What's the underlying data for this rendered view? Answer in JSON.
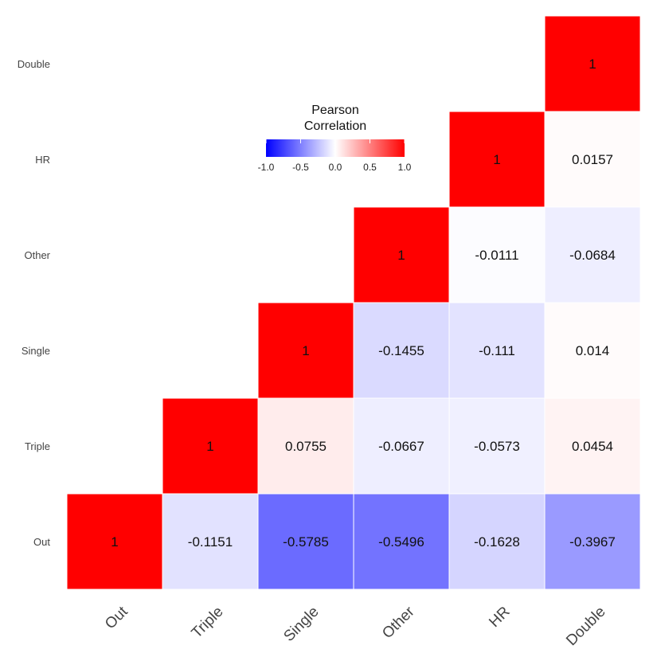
{
  "chart_data": {
    "type": "heatmap",
    "title": "",
    "variables": [
      "Out",
      "Triple",
      "Single",
      "Other",
      "HR",
      "Double"
    ],
    "matrix": [
      [
        1,
        -0.1151,
        -0.5785,
        -0.5496,
        -0.1628,
        -0.3967
      ],
      [
        null,
        1,
        0.0755,
        -0.0667,
        -0.0573,
        0.0454
      ],
      [
        null,
        null,
        1,
        -0.1455,
        -0.111,
        0.014
      ],
      [
        null,
        null,
        null,
        1,
        -0.0111,
        -0.0684
      ],
      [
        null,
        null,
        null,
        null,
        1,
        0.0157
      ],
      [
        null,
        null,
        null,
        null,
        null,
        1
      ]
    ],
    "legend": {
      "title_line1": "Pearson",
      "title_line2": "Correlation",
      "range": [
        -1,
        1
      ],
      "ticks": [
        "-1.0",
        "-0.5",
        "0.0",
        "0.5",
        "1.0"
      ],
      "low_color": "#0000ff",
      "mid_color": "#ffffff",
      "high_color": "#ff0000",
      "placement": "top-center"
    },
    "xlabel": "",
    "ylabel": ""
  }
}
